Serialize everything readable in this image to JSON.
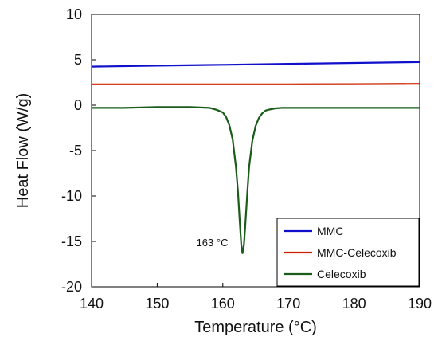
{
  "chart_data": {
    "type": "line",
    "title": "",
    "xlabel": "Temperature (°C)",
    "ylabel": "Heat Flow (W/g)",
    "xlim": [
      140,
      190
    ],
    "ylim": [
      -20,
      10
    ],
    "xticks": [
      "140",
      "150",
      "160",
      "170",
      "180",
      "190"
    ],
    "yticks": [
      "10",
      "5",
      "0",
      "-5",
      "-10",
      "-15",
      "-20"
    ],
    "grid": false,
    "legend_position": "bottom-right",
    "annotations": [
      {
        "text": "163 °C",
        "x": 163,
        "y": -16.3
      }
    ],
    "series": [
      {
        "name": "MMC",
        "color": "#1010cc",
        "x": [
          140,
          150,
          160,
          170,
          180,
          190
        ],
        "y": [
          4.25,
          4.35,
          4.45,
          4.55,
          4.65,
          4.75
        ]
      },
      {
        "name": "MMC-Celecoxib",
        "color": "#cc2200",
        "x": [
          140,
          150,
          160,
          170,
          180,
          190
        ],
        "y": [
          2.3,
          2.3,
          2.3,
          2.3,
          2.32,
          2.35
        ]
      },
      {
        "name": "Celecoxib",
        "color": "#1a5c1a",
        "x": [
          140,
          145,
          150,
          155,
          158,
          159,
          160,
          160.5,
          161,
          161.5,
          162,
          162.3,
          162.6,
          162.8,
          163,
          163.2,
          163.4,
          163.7,
          164,
          164.5,
          165,
          165.5,
          166,
          166.5,
          167,
          168,
          169,
          170,
          175,
          180,
          185,
          190
        ],
        "y": [
          -0.3,
          -0.3,
          -0.2,
          -0.2,
          -0.3,
          -0.5,
          -0.8,
          -1.3,
          -2.2,
          -3.8,
          -6.8,
          -9.5,
          -13.0,
          -15.3,
          -16.3,
          -15.5,
          -13.5,
          -10.0,
          -6.8,
          -3.9,
          -2.3,
          -1.4,
          -0.9,
          -0.6,
          -0.5,
          -0.35,
          -0.3,
          -0.3,
          -0.3,
          -0.3,
          -0.3,
          -0.3
        ]
      }
    ]
  }
}
